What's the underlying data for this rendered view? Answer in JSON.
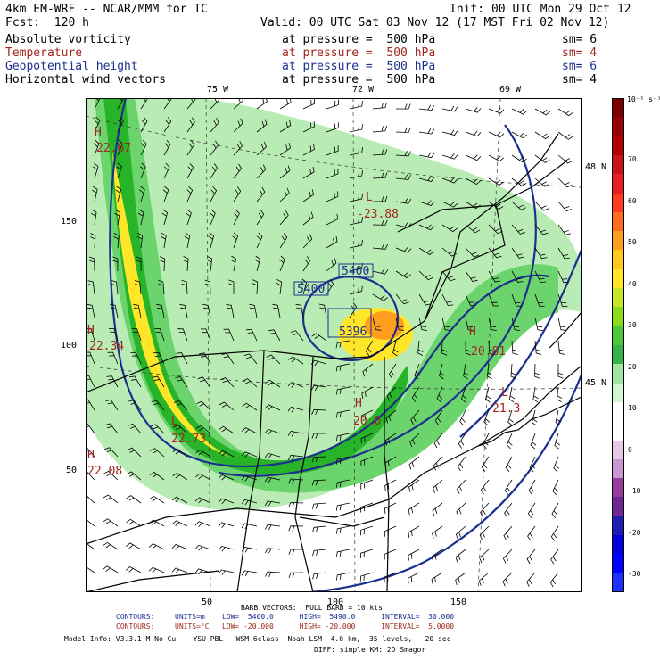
{
  "header": {
    "model": "4km EM-WRF -- NCAR/MMM for TC",
    "init": "Init: 00 UTC Mon 29 Oct 12",
    "fcst": "Fcst:  120 h",
    "valid": "Valid: 00 UTC Sat 03 Nov 12 (17 MST Fri 02 Nov 12)"
  },
  "fields": [
    {
      "name": "Absolute vorticity",
      "pressure": "at pressure =  500 hPa",
      "sm": "sm= 6",
      "color": "#000000"
    },
    {
      "name": "Temperature",
      "pressure": "at pressure =  500 hPa",
      "sm": "sm= 4",
      "color": "#a0261e"
    },
    {
      "name": "Geopotential height",
      "pressure": "at pressure =  500 hPa",
      "sm": "sm= 6",
      "color": "#1c2f8f"
    },
    {
      "name": "Horizontal wind vectors",
      "pressure": "at pressure =  500 hPa",
      "sm": "sm= 4",
      "color": "#000000"
    }
  ],
  "longitude_labels": [
    "75 W",
    "72 W",
    "69 W"
  ],
  "latitude_labels": [
    "48 N",
    "45 N"
  ],
  "grid_labels": {
    "y": [
      "150",
      "100",
      "50"
    ],
    "x": [
      "50",
      "100",
      "150"
    ]
  },
  "map_annotations": {
    "height_lows": [
      "5400",
      "5400",
      "5396"
    ],
    "temp_centers": [
      {
        "type": "H",
        "value": "22.67"
      },
      {
        "type": "L",
        "value": "-23.88"
      },
      {
        "type": "H",
        "value": "22.34"
      },
      {
        "type": "H",
        "value": "20.81"
      },
      {
        "type": "H",
        "value": "20.0"
      },
      {
        "type": "L",
        "value": "21.3"
      },
      {
        "type": "L",
        "value": "22.73"
      },
      {
        "type": "H",
        "value": "22.08"
      }
    ]
  },
  "colorbar": {
    "unit": "10⁻⁵ s⁻¹",
    "ticks": [
      "70",
      "60",
      "50",
      "40",
      "30",
      "20",
      "10",
      "0",
      "-10",
      "-20",
      "-30"
    ],
    "colors": [
      "#7a0000",
      "#960000",
      "#b00000",
      "#c81414",
      "#e62020",
      "#ff3c1e",
      "#ff6e1e",
      "#ff9e1e",
      "#ffc81e",
      "#ffe628",
      "#c8e628",
      "#8cdc1e",
      "#4cc83c",
      "#32b446",
      "#a0e6a0",
      "#d2f5d2",
      "#ffffff",
      "#ffffff",
      "#e6c8e6",
      "#c896d2",
      "#963ca0",
      "#6e2896",
      "#1e1eb4",
      "#0000dc",
      "#0000ff",
      "#1e32ff"
    ]
  },
  "footer": {
    "barb": "BARB VECTORS:  FULL BARB = 10 kts",
    "contours1_label": "CONTOURS:",
    "contours1": "UNITS=m    LOW=  5400.0      HIGH=  5490.0      INTERVAL=  30.000",
    "contours2_label": "CONTOURS:",
    "contours2": "UNITS=°C   LOW= -20.000      HIGH= -20.000      INTERVAL=  5.0000",
    "model_info": "Model Info: V3.3.1 M No Cu    YSU PBL   WSM 6class  Noah LSM  4.0 km,  35 levels,   20 sec",
    "model_info2": "DIFF: simple KM: 2D Smagor"
  }
}
